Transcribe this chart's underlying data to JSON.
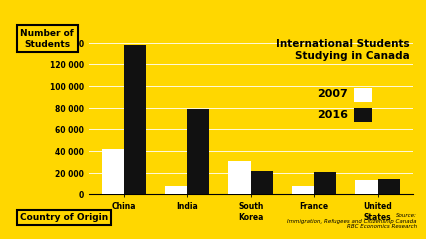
{
  "categories": [
    "China",
    "India",
    "South\nKorea",
    "France",
    "United\nStates"
  ],
  "values_2007": [
    42000,
    7500,
    31000,
    8000,
    13000
  ],
  "values_2016": [
    138000,
    79000,
    22000,
    21000,
    14000
  ],
  "bar_color_2007": "#ffffff",
  "bar_color_2016": "#111111",
  "background_color": "#FFD700",
  "title": "International Students\nStudying in Canada",
  "ylabel_label": "Number of\nStudents",
  "xlabel_label": "Country of Origin",
  "ylim": [
    0,
    145000
  ],
  "yticks": [
    0,
    20000,
    40000,
    60000,
    80000,
    100000,
    120000,
    140000
  ],
  "ytick_labels": [
    "0",
    "20 000",
    "40 000",
    "60 000",
    "80 000",
    "100 000",
    "120 000",
    "140 000"
  ],
  "legend_labels": [
    "2007",
    "2016"
  ],
  "source_text": "Source:\nImmigration, Refugees and Citizenship Canada\nRBC Economics Research",
  "title_fontsize": 7.5,
  "axis_fontsize": 6.5,
  "tick_fontsize": 5.5,
  "bar_width": 0.35
}
